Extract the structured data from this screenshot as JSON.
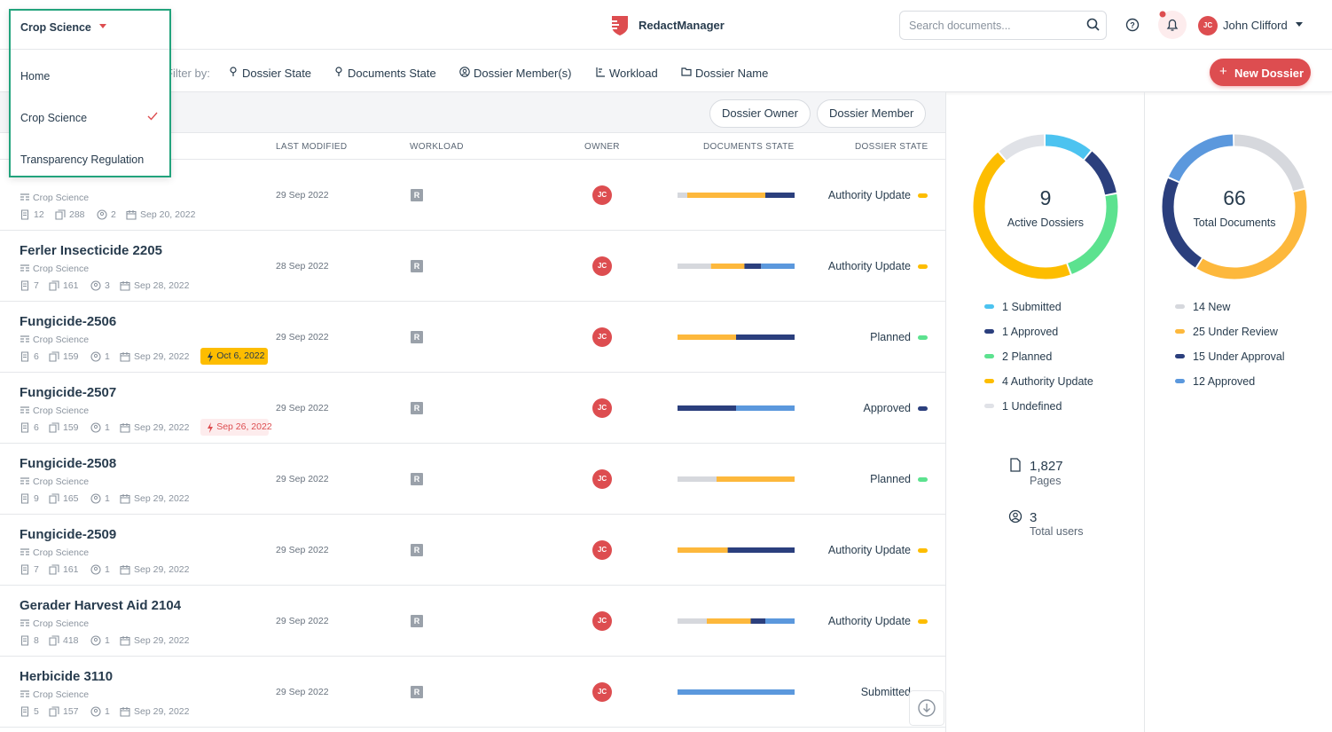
{
  "header": {
    "workspace": "Crop Science",
    "brand": "RedactManager",
    "search_placeholder": "Search documents...",
    "user_initials": "JC",
    "user_name": "John Clifford"
  },
  "dropdown": {
    "title": "Crop Science",
    "items": [
      "Home",
      "Crop Science",
      "Transparency Regulation"
    ]
  },
  "filters": {
    "label": "Filter by:",
    "items": [
      "Dossier State",
      "Documents State",
      "Dossier Member(s)",
      "Workload",
      "Dossier Name"
    ],
    "new_button": "New Dossier"
  },
  "quick_filters": [
    "Dossier Owner",
    "Dossier Member"
  ],
  "columns": [
    "LAST MODIFIED",
    "WORKLOAD",
    "OWNER",
    "DOCUMENTS STATE",
    "DOSSIER STATE"
  ],
  "rows": [
    {
      "template": "Crop Science",
      "documents": 12,
      "pages": 288,
      "members": 2,
      "created": "Sep 20, 2022",
      "modified": "29 Sep 2022",
      "workload": "R",
      "owner": "JC",
      "documents_state": [
        1,
        8,
        3,
        0
      ],
      "state": "Authority Update"
    },
    {
      "name": "Ferler Insecticide 2205",
      "template": "Crop Science",
      "documents": 7,
      "pages": 161,
      "members": 3,
      "created": "Sep 28, 2022",
      "modified": "28 Sep 2022",
      "workload": "R",
      "owner": "JC",
      "documents_state": [
        2,
        2,
        1,
        2
      ],
      "state": "Authority Update"
    },
    {
      "name": "Fungicide-2506",
      "template": "Crop Science",
      "documents": 6,
      "pages": 159,
      "members": 1,
      "created": "Sep 29, 2022",
      "due": {
        "label": "Oct 6, 2022",
        "style": "warning"
      },
      "modified": "29 Sep 2022",
      "workload": "R",
      "owner": "JC",
      "documents_state": [
        0,
        3,
        3,
        0
      ],
      "state": "Planned"
    },
    {
      "name": "Fungicide-2507",
      "template": "Crop Science",
      "documents": 6,
      "pages": 159,
      "members": 1,
      "created": "Sep 29, 2022",
      "due": {
        "label": "Sep 26, 2022",
        "style": "overdue"
      },
      "modified": "29 Sep 2022",
      "workload": "R",
      "owner": "JC",
      "documents_state": [
        0,
        0,
        3,
        3
      ],
      "state": "Approved"
    },
    {
      "name": "Fungicide-2508",
      "template": "Crop Science",
      "documents": 9,
      "pages": 165,
      "members": 1,
      "created": "Sep 29, 2022",
      "modified": "29 Sep 2022",
      "workload": "R",
      "owner": "JC",
      "documents_state": [
        3,
        6,
        0,
        0
      ],
      "state": "Planned"
    },
    {
      "name": "Fungicide-2509",
      "template": "Crop Science",
      "documents": 7,
      "pages": 161,
      "members": 1,
      "created": "Sep 29, 2022",
      "modified": "29 Sep 2022",
      "workload": "R",
      "owner": "JC",
      "documents_state": [
        0,
        3,
        4,
        0
      ],
      "state": "Authority Update"
    },
    {
      "name": "Gerader Harvest Aid 2104",
      "template": "Crop Science",
      "documents": 8,
      "pages": 418,
      "members": 1,
      "created": "Sep 29, 2022",
      "modified": "29 Sep 2022",
      "workload": "R",
      "owner": "JC",
      "documents_state": [
        2,
        3,
        1,
        2
      ],
      "state": "Authority Update"
    },
    {
      "name": "Herbicide 3110",
      "template": "Crop Science",
      "documents": 5,
      "pages": 157,
      "members": 1,
      "created": "Sep 29, 2022",
      "modified": "29 Sep 2022",
      "workload": "R",
      "owner": "JC",
      "documents_state": [
        0,
        0,
        0,
        5
      ],
      "state": "Submitted"
    }
  ],
  "dossiers_chart": {
    "total": 9,
    "label": "Active Dossiers",
    "series": [
      {
        "name": "Submitted",
        "value": 1,
        "color": "#4cc3f0"
      },
      {
        "name": "Approved",
        "value": 1,
        "color": "#2b3f7d"
      },
      {
        "name": "Planned",
        "value": 2,
        "color": "#5ce28f"
      },
      {
        "name": "Authority Update",
        "value": 4,
        "color": "#fdbd00"
      },
      {
        "name": "Undefined",
        "value": 1,
        "color": "#e0e2e7"
      }
    ]
  },
  "documents_chart": {
    "total": 66,
    "label": "Total Documents",
    "series": [
      {
        "name": "New",
        "value": 14,
        "color": "#d6d8dd"
      },
      {
        "name": "Under Review",
        "value": 25,
        "color": "#fdb83c"
      },
      {
        "name": "Under Approval",
        "value": 15,
        "color": "#2b3f7d"
      },
      {
        "name": "Approved",
        "value": 12,
        "color": "#5b98dd"
      }
    ]
  },
  "stats": [
    {
      "value": "1,827",
      "label": "Pages"
    },
    {
      "value": "3",
      "label": "Total users"
    }
  ]
}
